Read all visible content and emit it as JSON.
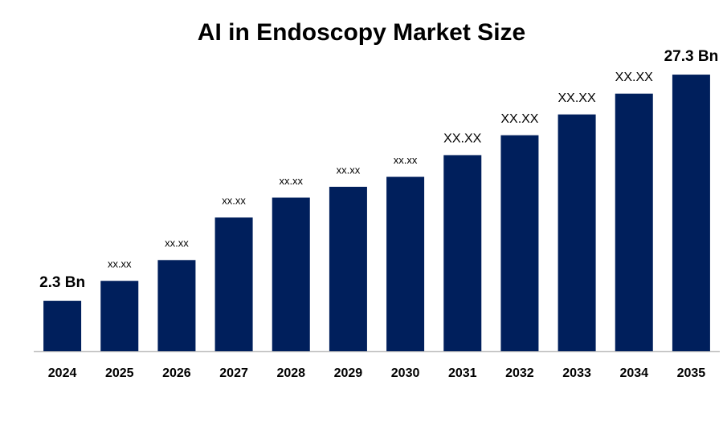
{
  "chart_data": {
    "type": "bar",
    "title": "AI in Endoscopy Market Size",
    "categories": [
      "2024",
      "2025",
      "2026",
      "2027",
      "2028",
      "2029",
      "2030",
      "2031",
      "2032",
      "2033",
      "2034",
      "2035"
    ],
    "values": [
      2.3,
      4.5,
      6.8,
      11.5,
      13.7,
      14.9,
      16.0,
      18.4,
      20.6,
      22.9,
      25.2,
      27.3
    ],
    "value_labels": [
      "2.3 Bn",
      "xx.xx",
      "xx.xx",
      "xx.xx",
      "xx.xx",
      "xx.xx",
      "xx.xx",
      "XX.XX",
      "XX.XX",
      "XX.XX",
      "XX.XX",
      "27.3 Bn"
    ],
    "color": "#001f5c"
  }
}
